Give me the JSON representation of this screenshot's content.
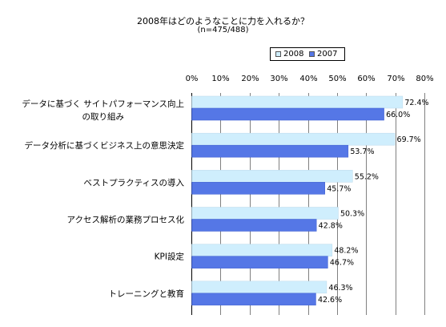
{
  "chart_data": {
    "type": "bar",
    "orientation": "horizontal",
    "title": "2008年はどのようなことに力を入れるか？",
    "subtitle": "(n=475/488)",
    "categories": [
      [
        "データに基づく  サイトパフォーマンス向上",
        "の取り組み"
      ],
      [
        "データ分析に基づくビジネス上の意思決定"
      ],
      [
        "ベストプラクティスの導入"
      ],
      [
        "アクセス解析の業務プロセス化"
      ],
      [
        "KPI設定"
      ],
      [
        "トレーニングと教育"
      ]
    ],
    "series": [
      {
        "name": "2008",
        "values": [
          72.4,
          69.7,
          55.2,
          50.3,
          48.2,
          46.3
        ],
        "color": "#cfeefd"
      },
      {
        "name": "2007",
        "values": [
          66.0,
          53.7,
          45.7,
          42.8,
          46.7,
          42.6
        ],
        "color": "#5577e6"
      }
    ],
    "value_labels": [
      [
        "72.4%",
        "69.7%",
        "55.2%",
        "50.3%",
        "48.2%",
        "46.3%"
      ],
      [
        "66.0%",
        "53.7%",
        "45.7%",
        "42.8%",
        "46.7%",
        "42.6%"
      ]
    ],
    "xlim": [
      0,
      80
    ],
    "xticks": [
      0,
      10,
      20,
      30,
      40,
      50,
      60,
      70,
      80
    ],
    "xtick_labels": [
      "0%",
      "10%",
      "20%",
      "30%",
      "40%",
      "50%",
      "60%",
      "70%",
      "80%"
    ],
    "xlabel": "",
    "ylabel": "",
    "grid": true,
    "legend": "top",
    "axis_color": "#000000",
    "grid_color": "#808080"
  }
}
